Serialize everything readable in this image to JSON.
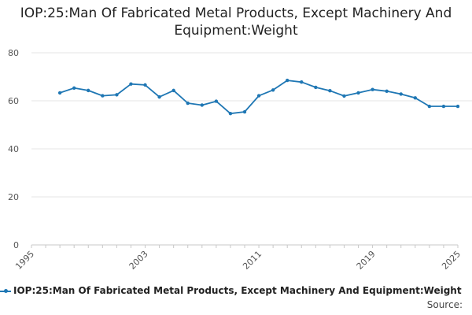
{
  "chart_data": {
    "type": "line",
    "title": "IOP:25:Man Of Fabricated Metal Products, Except Machinery And Equipment:Weight",
    "xlabel": "",
    "ylabel": "",
    "xlim": [
      1995,
      2025
    ],
    "ylim": [
      0,
      80
    ],
    "x_ticks": [
      "1995",
      "2003",
      "2011",
      "2019",
      "2025"
    ],
    "y_ticks": [
      "0",
      "20",
      "40",
      "60",
      "80"
    ],
    "grid": true,
    "legend_position": "bottom",
    "series": [
      {
        "name": "IOP:25:Man Of Fabricated Metal Products, Except Machinery And Equipment:Weight",
        "color": "#1f77b4",
        "x": [
          1997,
          1998,
          1999,
          2000,
          2001,
          2002,
          2003,
          2004,
          2005,
          2006,
          2007,
          2008,
          2009,
          2010,
          2011,
          2012,
          2013,
          2014,
          2015,
          2016,
          2017,
          2018,
          2019,
          2020,
          2021,
          2022,
          2023,
          2024,
          2025
        ],
        "values": [
          63.3,
          65.3,
          64.3,
          62.1,
          62.5,
          67.0,
          66.6,
          61.6,
          64.3,
          59.0,
          58.2,
          59.8,
          54.7,
          55.4,
          62.1,
          64.5,
          68.5,
          67.8,
          65.6,
          64.2,
          62.0,
          63.3,
          64.7,
          64.0,
          62.8,
          61.2,
          57.7,
          57.7,
          57.7
        ]
      }
    ]
  },
  "source_label": "Source:"
}
